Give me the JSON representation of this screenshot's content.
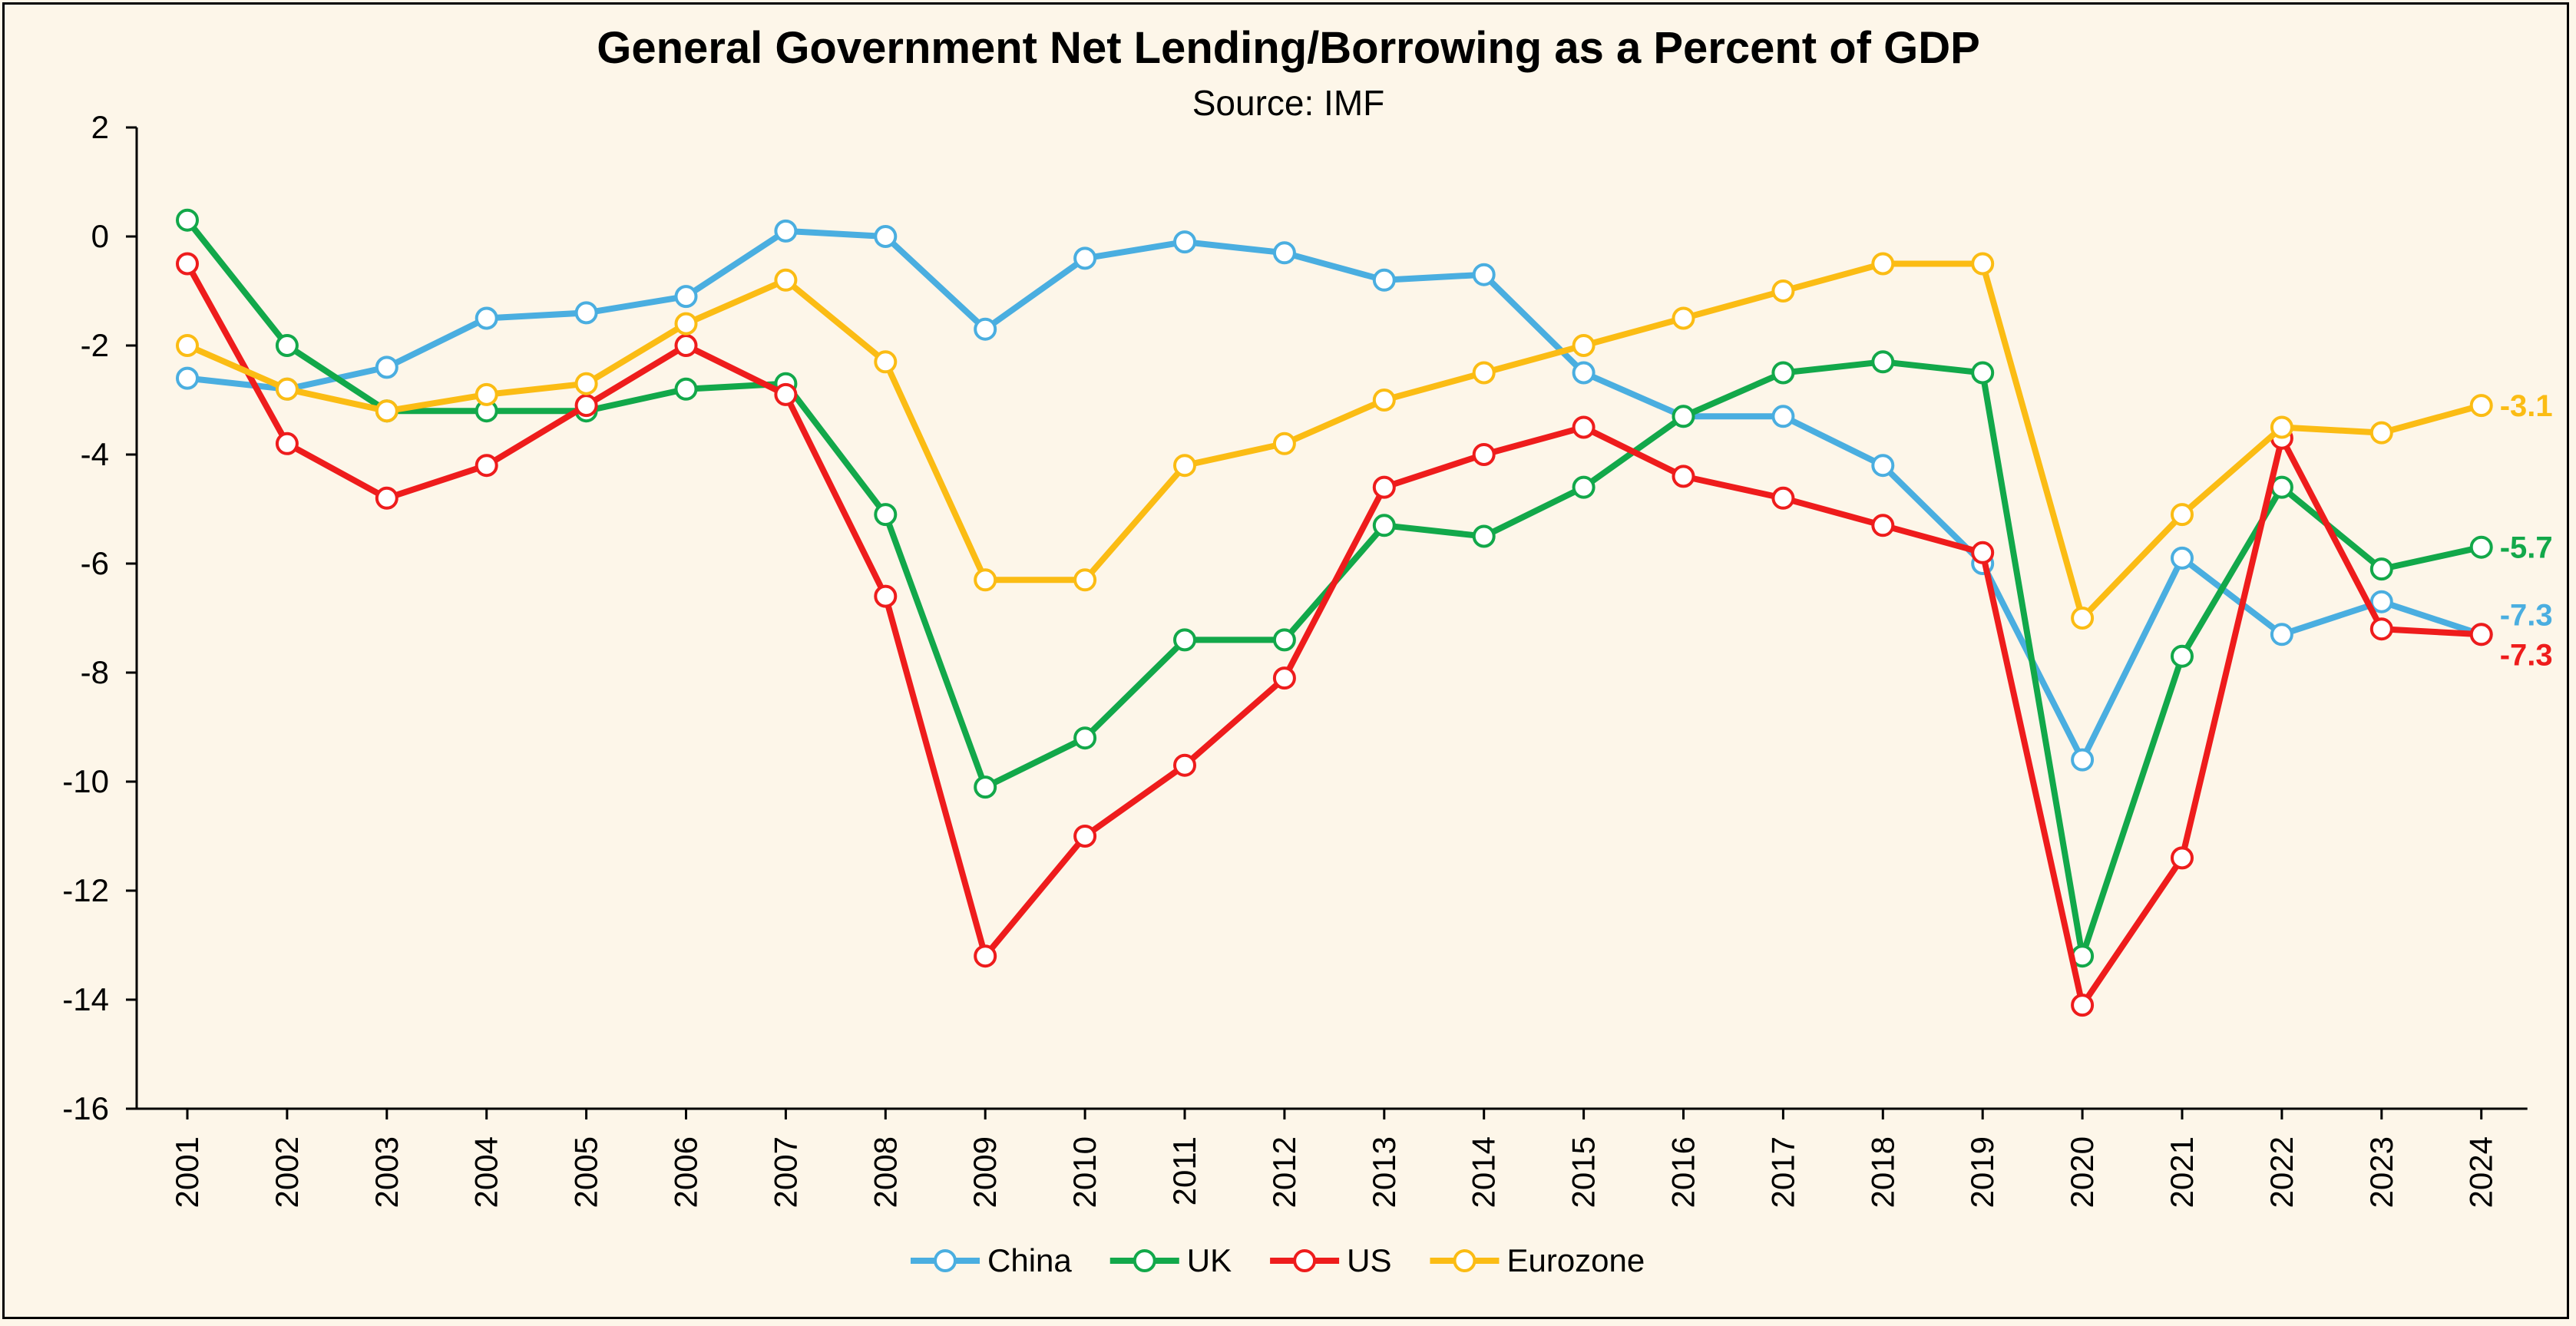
{
  "chart_data": {
    "type": "line",
    "title": "General Government Net Lending/Borrowing as a Percent of GDP",
    "subtitle": "Source: IMF",
    "xlabel": "",
    "ylabel": "",
    "ylim": [
      -16,
      2
    ],
    "yticks": [
      2,
      0,
      -2,
      -4,
      -6,
      -8,
      -10,
      -12,
      -14,
      -16
    ],
    "grid": false,
    "legend_position": "bottom",
    "categories": [
      "2001",
      "2002",
      "2003",
      "2004",
      "2005",
      "2006",
      "2007",
      "2008",
      "2009",
      "2010",
      "2011",
      "2012",
      "2013",
      "2014",
      "2015",
      "2016",
      "2017",
      "2018",
      "2019",
      "2020",
      "2021",
      "2022",
      "2023",
      "2024"
    ],
    "series": [
      {
        "name": "China",
        "color": "#4aaee0",
        "end_label": "-7.3",
        "values": [
          -2.6,
          -2.8,
          -2.4,
          -1.5,
          -1.4,
          -1.1,
          0.1,
          0.0,
          -1.7,
          -0.4,
          -0.1,
          -0.3,
          -0.8,
          -0.7,
          -2.5,
          -3.3,
          -3.3,
          -4.2,
          -6.0,
          -9.6,
          -5.9,
          -7.3,
          -6.7,
          -7.3
        ]
      },
      {
        "name": "UK",
        "color": "#12a84a",
        "end_label": "-5.7",
        "values": [
          0.3,
          -2.0,
          -3.2,
          -3.2,
          -3.2,
          -2.8,
          -2.7,
          -5.1,
          -10.1,
          -9.2,
          -7.4,
          -7.4,
          -5.3,
          -5.5,
          -4.6,
          -3.3,
          -2.5,
          -2.3,
          -2.5,
          -13.2,
          -7.7,
          -4.6,
          -6.1,
          -5.7
        ]
      },
      {
        "name": "US",
        "color": "#ee1c1c",
        "end_label": "-7.3",
        "values": [
          -0.5,
          -3.8,
          -4.8,
          -4.2,
          -3.1,
          -2.0,
          -2.9,
          -6.6,
          -13.2,
          -11.0,
          -9.7,
          -8.1,
          -4.6,
          -4.0,
          -3.5,
          -4.4,
          -4.8,
          -5.3,
          -5.8,
          -14.1,
          -11.4,
          -3.7,
          -7.2,
          -7.3
        ]
      },
      {
        "name": "Eurozone",
        "color": "#fbbc14",
        "end_label": "-3.1",
        "values": [
          -2.0,
          -2.8,
          -3.2,
          -2.9,
          -2.7,
          -1.6,
          -0.8,
          -2.3,
          -6.3,
          -6.3,
          -4.2,
          -3.8,
          -3.0,
          -2.5,
          -2.0,
          -1.5,
          -1.0,
          -0.5,
          -0.5,
          -7.0,
          -5.1,
          -3.5,
          -3.6,
          -3.1
        ]
      }
    ]
  }
}
